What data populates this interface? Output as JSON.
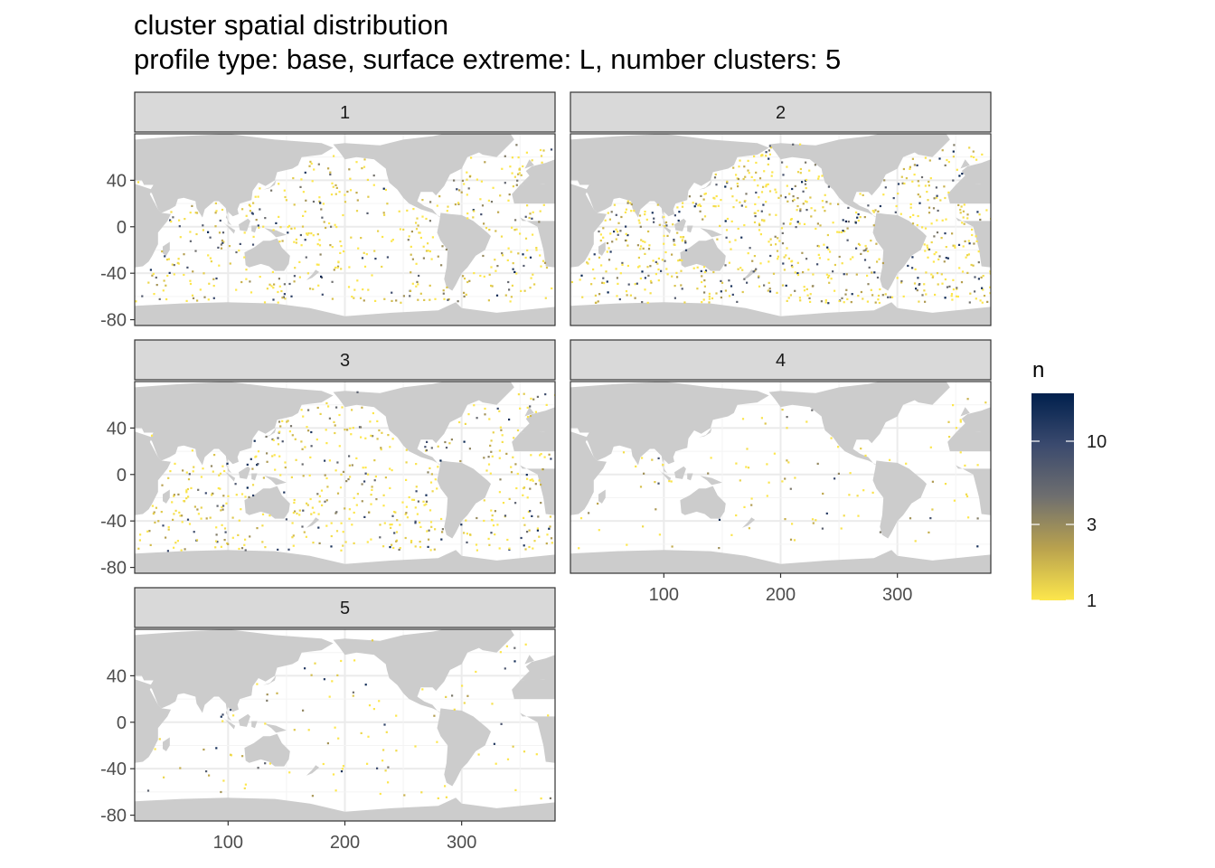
{
  "chart_data": {
    "type": "heatmap",
    "title": "cluster spatial distribution",
    "subtitle": "profile type: base, surface extreme: L, number clusters: 5",
    "facets": [
      "1",
      "2",
      "3",
      "4",
      "5"
    ],
    "xlabel": "",
    "ylabel": "",
    "xlim": [
      20,
      380
    ],
    "ylim": [
      -85,
      80
    ],
    "x_ticks": [
      100,
      200,
      300
    ],
    "x_tick_labels": [
      "100",
      "200",
      "300"
    ],
    "y_ticks": [
      40,
      0,
      -40,
      -80
    ],
    "y_tick_labels": [
      "40",
      "0",
      "-40",
      "-80"
    ],
    "grid": true,
    "legend": {
      "title": "n",
      "position": "right",
      "scale": "log",
      "breaks": [
        1,
        3,
        10
      ],
      "break_labels": [
        "1",
        "3",
        "10"
      ],
      "range": [
        1,
        20
      ],
      "colors": [
        "#fde74c",
        "#b9a24e",
        "#6f6f6f",
        "#3b4a6e",
        "#00204d"
      ]
    },
    "land_color": "#cccccc",
    "panel_density": {
      "1": 0.55,
      "2": 0.85,
      "3": 0.6,
      "4": 0.12,
      "5": 0.12
    }
  }
}
